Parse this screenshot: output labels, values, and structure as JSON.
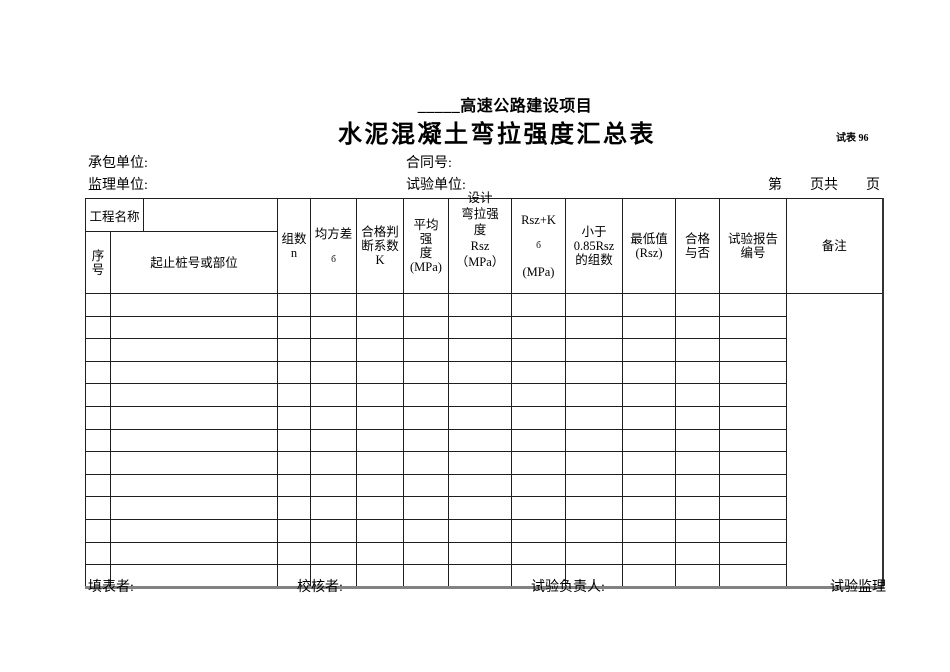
{
  "header": {
    "project_line": "_____高速公路建设项目",
    "form_title": "水泥混凝土弯拉强度汇总表",
    "form_code": "试表 96"
  },
  "info": {
    "contractor_label": "承包单位:",
    "contract_label": "合同号:",
    "supervision_label": "监理单位:",
    "test_unit_label": "试验单位:",
    "page_indicator": "第　　页共　　页"
  },
  "table": {
    "project_name_label": "工程名称",
    "columns": [
      {
        "id": "seq",
        "label": "序\n号"
      },
      {
        "id": "stake",
        "label": "起止桩号或部位"
      },
      {
        "id": "groups",
        "label": "组数\nn"
      },
      {
        "id": "std_dev",
        "label": "均方差",
        "sub": "б"
      },
      {
        "id": "pass_coef",
        "label": "合格判\n断系数\nK"
      },
      {
        "id": "avg_strength",
        "label": "平均\n强\n度\n(MPa)"
      },
      {
        "id": "design_strength",
        "label": "设计\n弯拉强\n度\nRsz\n（MPa）"
      },
      {
        "id": "rsz_plus_k",
        "label": "Rsz+K",
        "sub": "б",
        "unit": "(MPa)"
      },
      {
        "id": "groups_below_085",
        "label": "小于\n0.85Rsz\n的组数"
      },
      {
        "id": "min_value",
        "label": "最低值\n(Rsz)"
      },
      {
        "id": "qualified",
        "label": "合格\n与否"
      },
      {
        "id": "report_no",
        "label": "试验报告\n编号"
      },
      {
        "id": "remarks",
        "label": "备注"
      }
    ],
    "data_row_count": 13
  },
  "footer": {
    "preparer_label": "填表者:",
    "checker_label": "校核者:",
    "test_leader_label": "试验负责人:",
    "test_supervisor_label": "试验监理"
  }
}
